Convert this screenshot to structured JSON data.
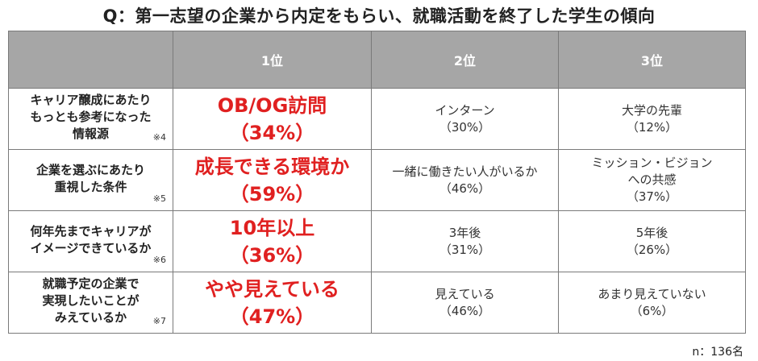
{
  "title": "Q：第一志望の企業から内定をもらい、就職活動を終了した学生の傾向",
  "header": {
    "corner": "",
    "rank1": "1位",
    "rank2": "2位",
    "rank3": "3位"
  },
  "rows": [
    {
      "question": "キャリア醸成にあたり\nもっとも参考になった\n情報源",
      "note": "※4",
      "rank1": {
        "label": "OB/OG訪問",
        "pct": "（34%）"
      },
      "rank2": {
        "label": "インターン",
        "pct": "（30%）"
      },
      "rank3": {
        "label": "大学の先輩",
        "pct": "（12%）"
      }
    },
    {
      "question": "企業を選ぶにあたり\n重視した条件",
      "note": "※5",
      "rank1": {
        "label": "成長できる環境か",
        "pct": "（59%）"
      },
      "rank2": {
        "label": "一緒に働きたい人がいるか",
        "pct": "（46%）"
      },
      "rank3": {
        "label": "ミッション・ビジョン\nへの共感",
        "pct": "（37%）"
      }
    },
    {
      "question": "何年先までキャリアが\nイメージできているか",
      "note": "※6",
      "rank1": {
        "label": "10年以上",
        "pct": "（36%）"
      },
      "rank2": {
        "label": "3年後",
        "pct": "（31%）"
      },
      "rank3": {
        "label": "5年後",
        "pct": "（26%）"
      }
    },
    {
      "question": "就職予定の企業で\n実現したいことが\nみえているか",
      "note": "※7",
      "rank1": {
        "label": "やや見えている",
        "pct": "（47%）"
      },
      "rank2": {
        "label": "見えている",
        "pct": "（46%）"
      },
      "rank3": {
        "label": "あまり見えていない",
        "pct": "（6%）"
      }
    }
  ],
  "footer": "n：136名",
  "colors": {
    "header_bg": "#a6a6a6",
    "highlight": "#e02020",
    "border": "#7a7a7a"
  }
}
